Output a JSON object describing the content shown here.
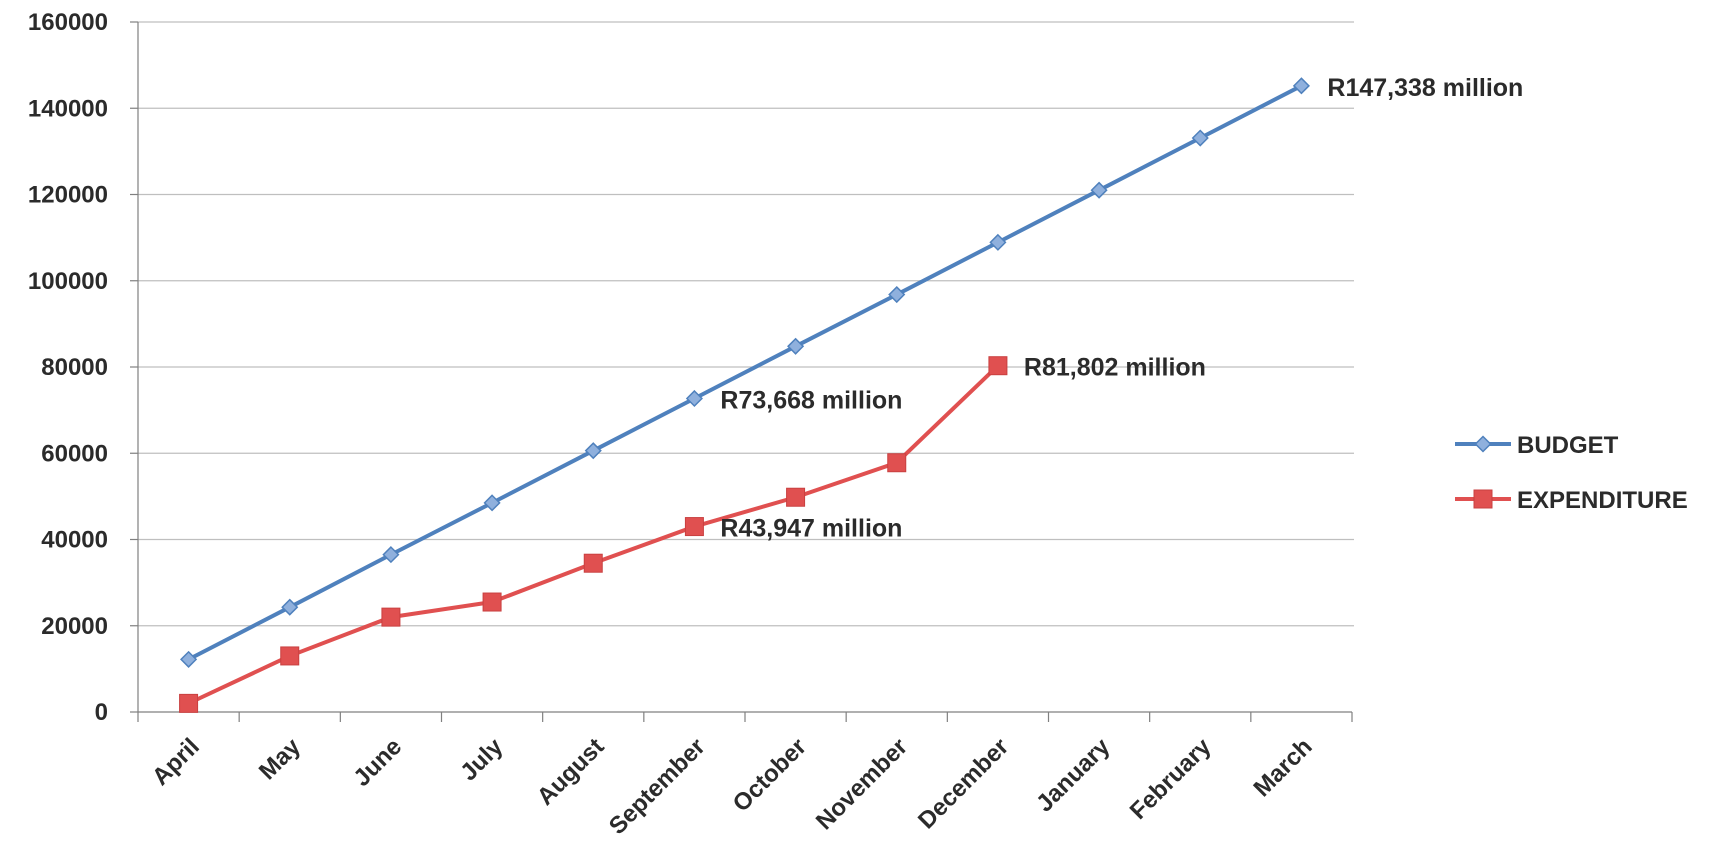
{
  "chart_data": {
    "type": "line",
    "title": "",
    "xlabel": "",
    "ylabel": "",
    "categories": [
      "April",
      "May",
      "June",
      "July",
      "August",
      "September",
      "October",
      "November",
      "December",
      "January",
      "February",
      "March"
    ],
    "ylim": [
      0,
      160000
    ],
    "yticks": [
      0,
      20000,
      40000,
      60000,
      80000,
      100000,
      120000,
      140000,
      160000
    ],
    "ytick_labels": [
      "0",
      "20000",
      "40000",
      "60000",
      "80000",
      "100000",
      "120000",
      "140000",
      "160000"
    ],
    "grid": true,
    "legend_position": "right",
    "series": [
      {
        "name": "BUDGET",
        "color": "#4f81bd",
        "marker": "diamond",
        "values": [
          12200,
          24300,
          36500,
          48500,
          60600,
          72700,
          84800,
          96800,
          108900,
          121000,
          133100,
          145200
        ]
      },
      {
        "name": "EXPENDITURE",
        "color": "#e05050",
        "marker": "square",
        "values": [
          2000,
          13000,
          22000,
          25500,
          34500,
          43000,
          49800,
          57800,
          80300,
          null,
          null,
          null
        ]
      }
    ],
    "annotations": [
      {
        "text": "R147,338 million",
        "series": 0,
        "index": 11
      },
      {
        "text": "R73,668 million",
        "series": 0,
        "index": 5
      },
      {
        "text": "R81,802 million",
        "series": 1,
        "index": 8
      },
      {
        "text": "R43,947 million",
        "series": 1,
        "index": 5
      }
    ]
  }
}
